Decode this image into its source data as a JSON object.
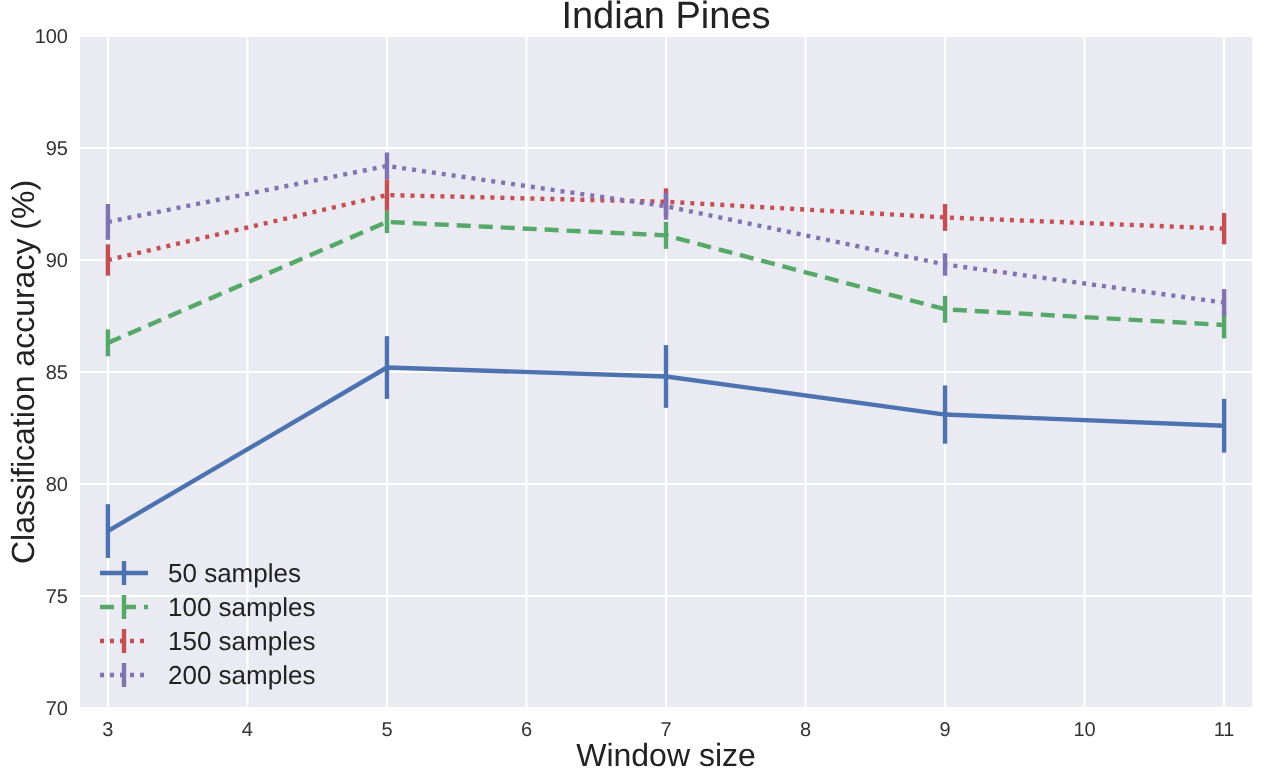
{
  "chart_data": {
    "type": "line",
    "title": "Indian Pines",
    "xlabel": "Window size",
    "ylabel": "Classification accuracy (%)",
    "x": [
      3,
      5,
      7,
      9,
      11
    ],
    "xlim": [
      2.8,
      11.2
    ],
    "xticks": [
      3,
      4,
      5,
      6,
      7,
      8,
      9,
      10,
      11
    ],
    "ylim": [
      70,
      100
    ],
    "yticks": [
      70,
      75,
      80,
      85,
      90,
      95,
      100
    ],
    "grid": true,
    "legend": "bottom left",
    "marker": "none",
    "series": [
      {
        "name": "50 samples",
        "color": "#4c72b0",
        "line_style": "solid",
        "values": [
          77.9,
          85.2,
          84.8,
          83.1,
          82.6
        ],
        "errors": [
          1.2,
          1.4,
          1.4,
          1.3,
          1.2
        ]
      },
      {
        "name": "100 samples",
        "color": "#55a868",
        "line_style": "dashed",
        "values": [
          86.3,
          91.7,
          91.1,
          87.8,
          87.1
        ],
        "errors": [
          0.6,
          0.5,
          0.6,
          0.6,
          0.6
        ]
      },
      {
        "name": "150 samples",
        "color": "#c44e52",
        "line_style": "dotted",
        "values": [
          90.0,
          92.9,
          92.6,
          91.9,
          91.4
        ],
        "errors": [
          0.7,
          0.7,
          0.6,
          0.6,
          0.7
        ]
      },
      {
        "name": "200 samples",
        "color": "#8172b2",
        "line_style": "dotted",
        "values": [
          91.7,
          94.2,
          92.4,
          89.8,
          88.1
        ],
        "errors": [
          0.8,
          0.6,
          0.6,
          0.5,
          0.6
        ]
      }
    ]
  }
}
